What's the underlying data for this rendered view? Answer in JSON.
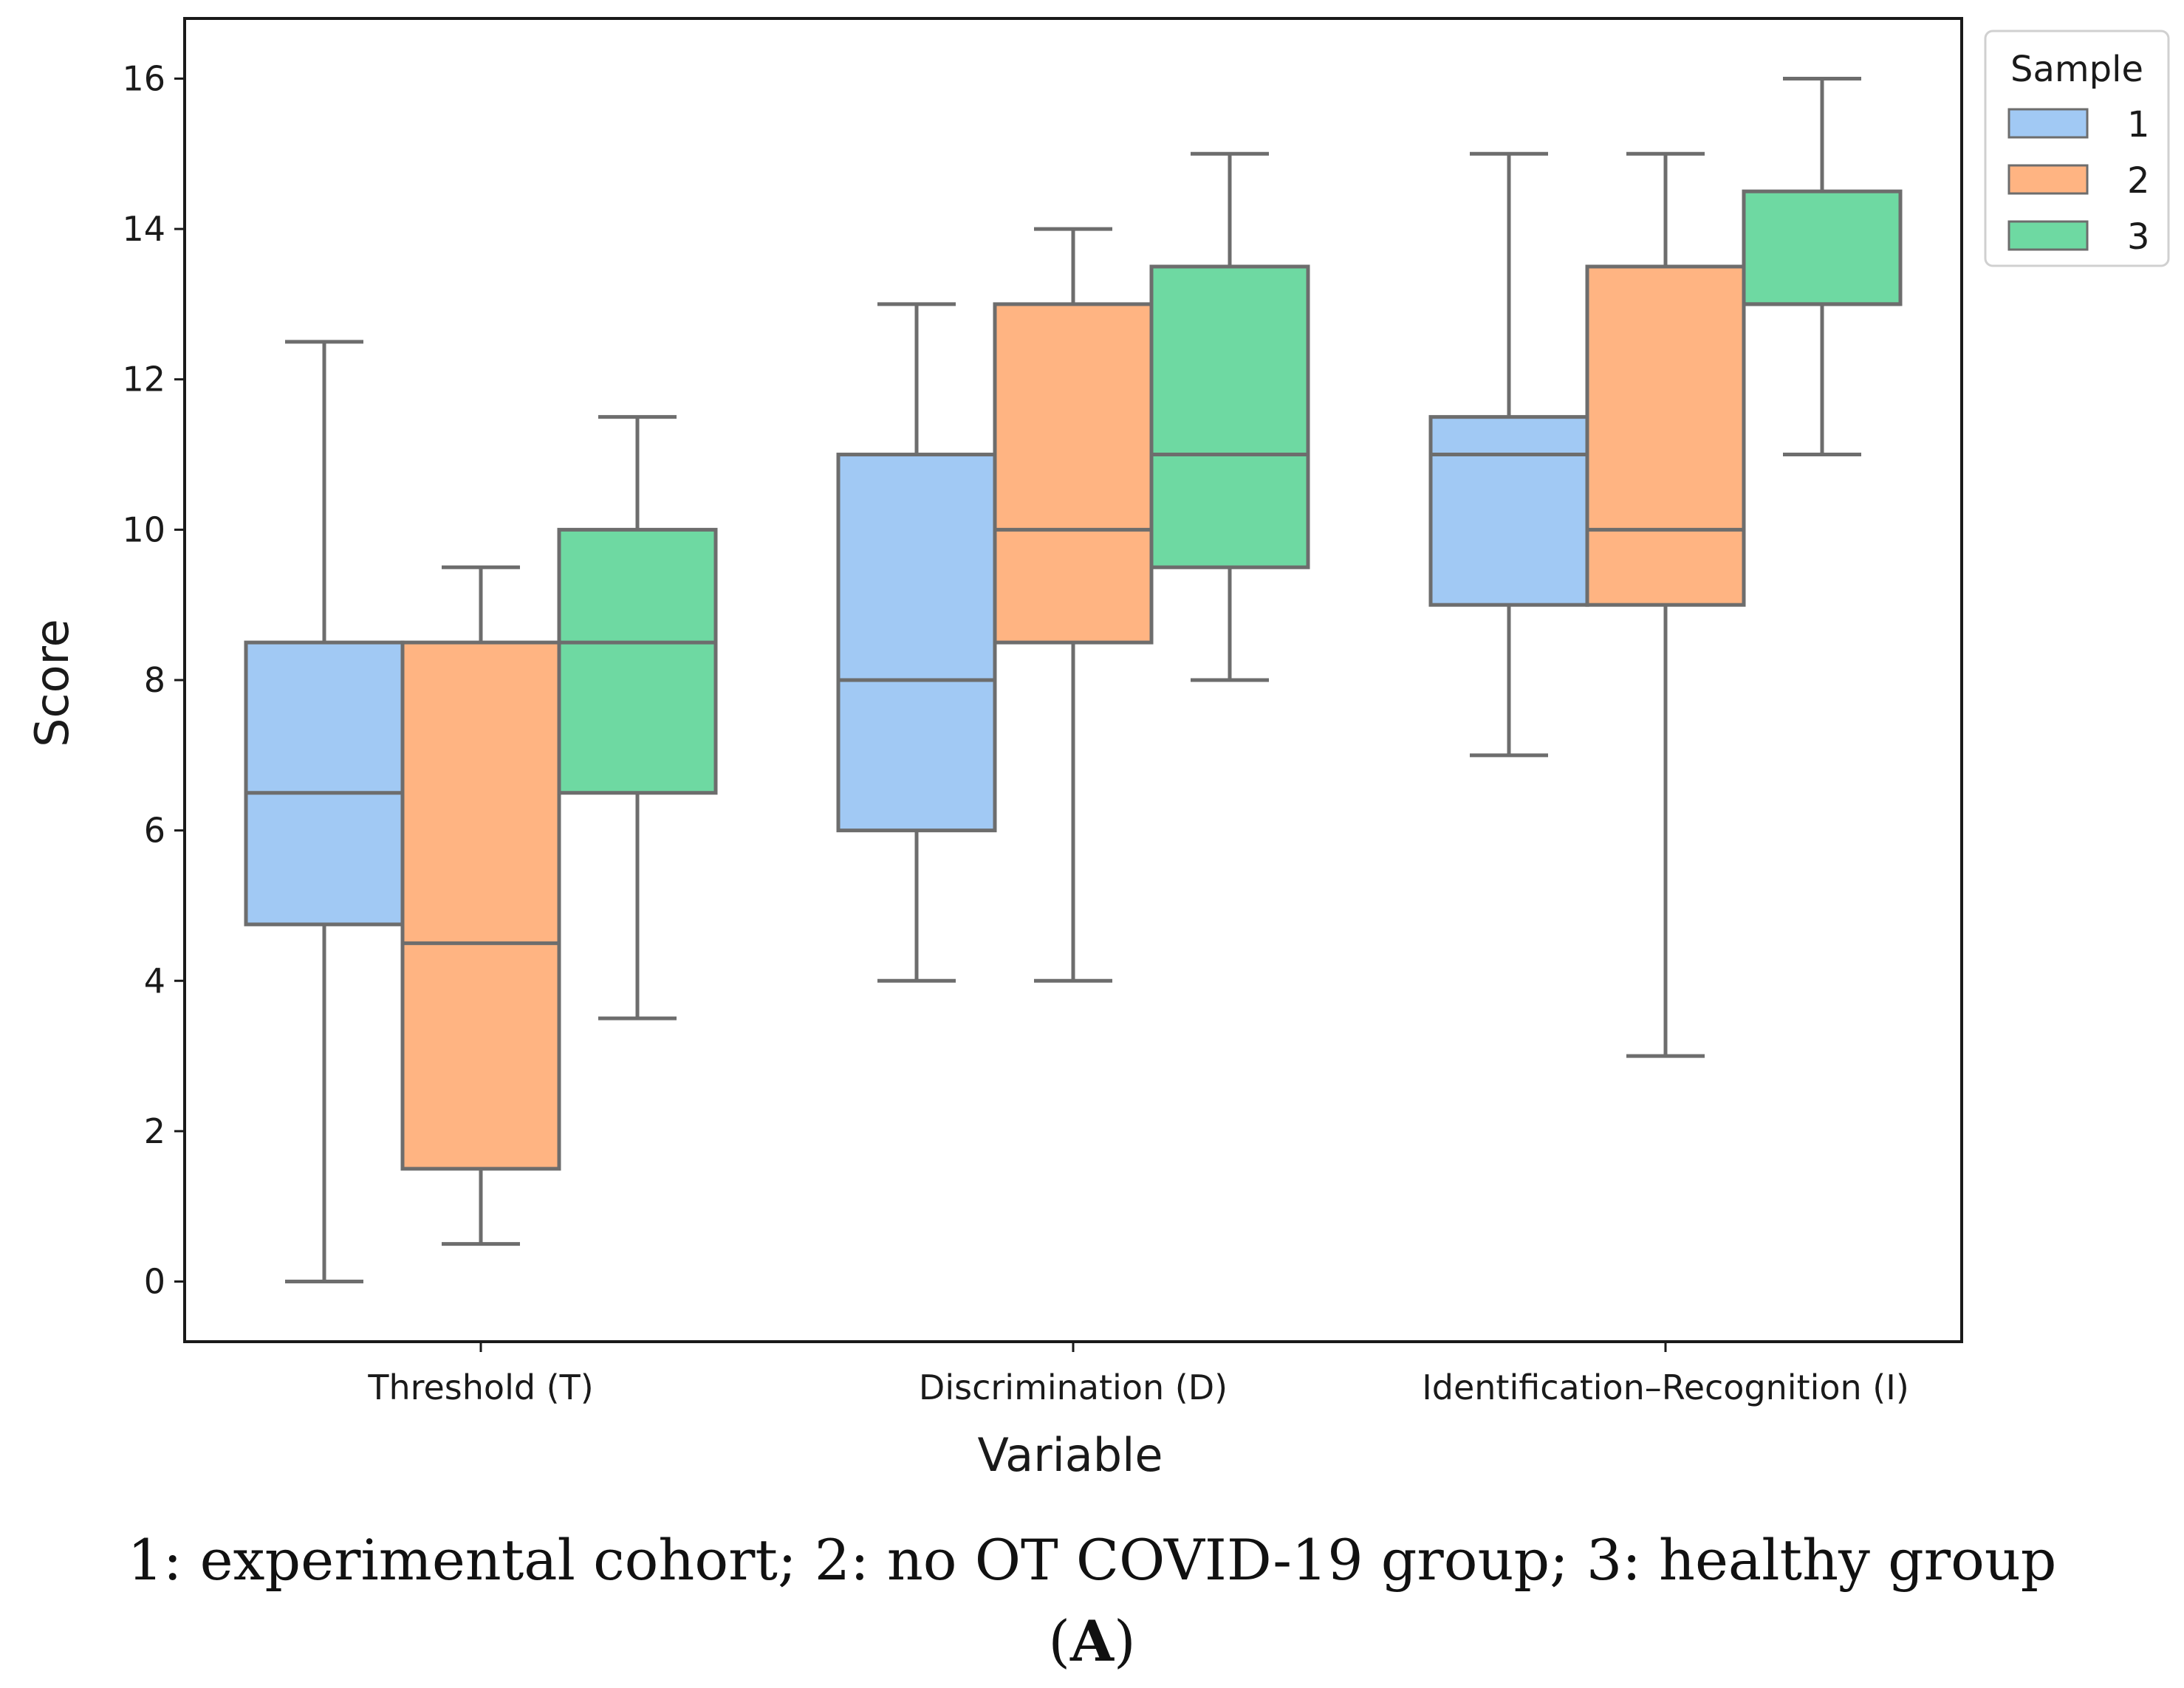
{
  "chart_data": {
    "type": "box",
    "xlabel": "Variable",
    "ylabel": "Score",
    "ylim": [
      -0.8,
      16.8
    ],
    "yticks": [
      0,
      2,
      4,
      6,
      8,
      10,
      12,
      14,
      16
    ],
    "categories": [
      "Threshold (T)",
      "Discrimination (D)",
      "Identification–Recognition (I)"
    ],
    "legend": {
      "title": "Sample",
      "position": "top-right"
    },
    "colors": {
      "1": "#a1c9f4",
      "2": "#ffb482",
      "3": "#6ed9a2",
      "line": "#6d6d6d"
    },
    "series": [
      {
        "name": "1",
        "boxes": [
          {
            "min": 0.0,
            "q1": 4.75,
            "median": 6.5,
            "q3": 8.5,
            "max": 12.5
          },
          {
            "min": 4.0,
            "q1": 6.0,
            "median": 8.0,
            "q3": 11.0,
            "max": 13.0
          },
          {
            "min": 7.0,
            "q1": 9.0,
            "median": 11.0,
            "q3": 11.5,
            "max": 15.0
          }
        ]
      },
      {
        "name": "2",
        "boxes": [
          {
            "min": 0.5,
            "q1": 1.5,
            "median": 4.5,
            "q3": 8.5,
            "max": 9.5
          },
          {
            "min": 4.0,
            "q1": 8.5,
            "median": 10.0,
            "q3": 13.0,
            "max": 14.0
          },
          {
            "min": 3.0,
            "q1": 9.0,
            "median": 10.0,
            "q3": 13.5,
            "max": 15.0
          }
        ]
      },
      {
        "name": "3",
        "boxes": [
          {
            "min": 3.5,
            "q1": 6.5,
            "median": 8.5,
            "q3": 10.0,
            "max": 11.5
          },
          {
            "min": 8.0,
            "q1": 9.5,
            "median": 11.0,
            "q3": 13.5,
            "max": 15.0
          },
          {
            "min": 11.0,
            "q1": 13.0,
            "median": 13.0,
            "q3": 14.5,
            "max": 16.0
          }
        ]
      }
    ]
  },
  "caption": {
    "text": "1: experimental cohort; 2: no OT COVID-19 group; 3: healthy group",
    "open": "(",
    "label": "A",
    "close": ")"
  }
}
